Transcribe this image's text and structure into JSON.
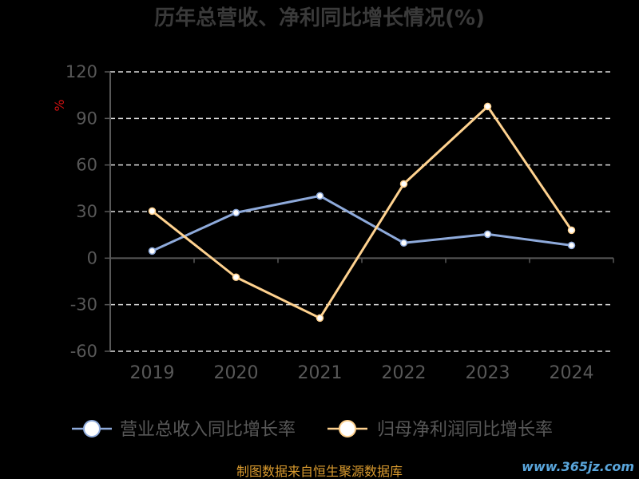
{
  "page": {
    "background": "#000000"
  },
  "chart_data": {
    "type": "line",
    "title": "历年总营收、净利同比增长情况(%)",
    "xlabel": "",
    "ylabel": "%",
    "categories": [
      "2019",
      "2020",
      "2021",
      "2022",
      "2023",
      "2024"
    ],
    "yticks": [
      120,
      90,
      60,
      30,
      0,
      -30,
      -60
    ],
    "ylim": [
      -60,
      120
    ],
    "grid": true,
    "grid_style": "dashed",
    "legend_position": "bottom",
    "series": [
      {
        "name": "营业总收入同比增长率",
        "color": "#8eaadb",
        "values": [
          4.6,
          29.3,
          40.1,
          9.8,
          15.4,
          8.2
        ]
      },
      {
        "name": "归母净利润同比增长率",
        "color": "#ffd28f",
        "values": [
          30.3,
          -12.3,
          -38.6,
          47.8,
          97.7,
          18.0
        ]
      }
    ]
  },
  "footer": {
    "source": "制图数据来自恒生聚源数据库",
    "watermark": "www.365jz.com"
  },
  "colors": {
    "title": "#3a3a3a",
    "axis": "#585858",
    "grid": "#dddddd",
    "ylabel": "#cc1111",
    "source": "#d99a2e",
    "watermark": "#5aa6dc"
  }
}
